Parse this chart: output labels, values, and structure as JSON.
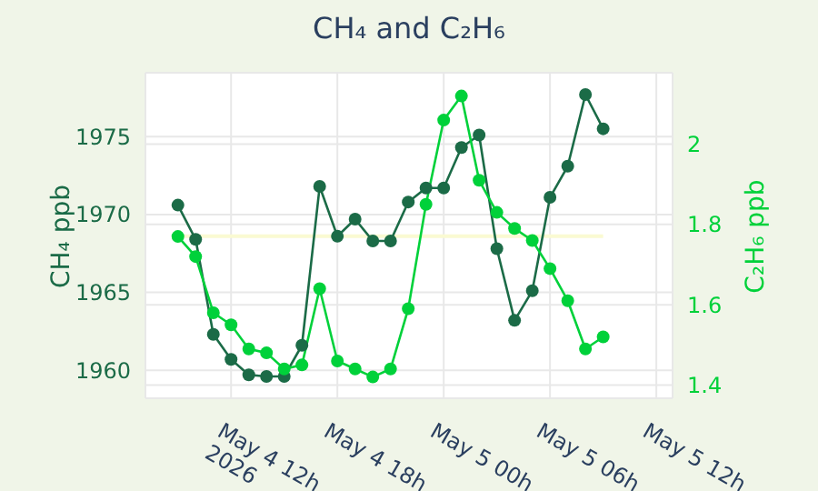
{
  "chart_data": {
    "type": "line",
    "title": "CH₄ and C₂H₆",
    "ylabel": "CH₄ ppb",
    "y2label": "C₂H₆ ppb",
    "x": [
      "2026-05-04T09:00",
      "2026-05-04T10:00",
      "2026-05-04T11:00",
      "2026-05-04T12:00",
      "2026-05-04T13:00",
      "2026-05-04T14:00",
      "2026-05-04T15:00",
      "2026-05-04T16:00",
      "2026-05-04T17:00",
      "2026-05-04T18:00",
      "2026-05-04T19:00",
      "2026-05-04T20:00",
      "2026-05-04T21:00",
      "2026-05-04T22:00",
      "2026-05-04T23:00",
      "2026-05-05T00:00",
      "2026-05-05T01:00",
      "2026-05-05T02:00",
      "2026-05-05T03:00",
      "2026-05-05T04:00",
      "2026-05-05T05:00",
      "2026-05-05T06:00",
      "2026-05-05T07:00",
      "2026-05-05T08:00",
      "2026-05-05T09:00"
    ],
    "series": [
      {
        "color": "#1b6b47",
        "values": [
          1970.6,
          1968.4,
          1962.3,
          1960.7,
          1959.7,
          1959.6,
          1959.6,
          1961.6,
          1971.8,
          1968.6,
          1969.7,
          1968.3,
          1968.3,
          1970.8,
          1971.7,
          1971.7,
          1974.3,
          1975.1,
          1967.8,
          1963.2,
          1965.1,
          1971.1,
          1973.1,
          1977.7,
          1975.5
        ]
      },
      {
        "color": "#00d13a",
        "axis": "y2",
        "values": [
          1.77,
          1.72,
          1.58,
          1.55,
          1.49,
          1.48,
          1.44,
          1.45,
          1.64,
          1.46,
          1.44,
          1.42,
          1.44,
          1.59,
          1.85,
          2.06,
          2.12,
          1.91,
          1.83,
          1.79,
          1.76,
          1.69,
          1.61,
          1.49,
          1.52
        ]
      }
    ],
    "xlim": [
      "2026-05-04T07:10",
      "2026-05-05T12:55"
    ],
    "xticks": [
      {
        "value": "2026-05-04T12:00",
        "label": "May 4 12h\n2026"
      },
      {
        "value": "2026-05-04T18:00",
        "label": "May 4 18h"
      },
      {
        "value": "2026-05-05T00:00",
        "label": "May 5 00h"
      },
      {
        "value": "2026-05-05T06:00",
        "label": "May 5 06h"
      },
      {
        "value": "2026-05-05T12:00",
        "label": "May 5 12h"
      }
    ],
    "ylim": [
      1958.2,
      1979.1
    ],
    "yticks": [
      1960,
      1965,
      1970,
      1975
    ],
    "y2lim": [
      1.367,
      2.178
    ],
    "y2ticks": [
      1.4,
      1.6,
      1.8,
      2
    ],
    "ref_lines": [
      {
        "axis": "y",
        "value": 1968.6,
        "color": "#fafad2"
      }
    ],
    "grid": true,
    "marker": "circle",
    "line_style": "solid"
  }
}
